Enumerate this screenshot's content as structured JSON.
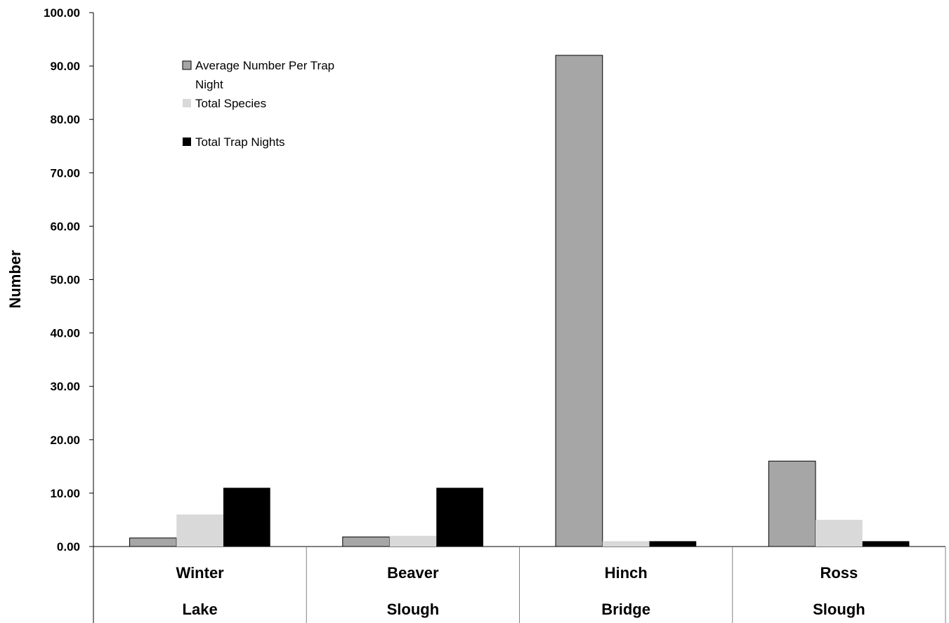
{
  "chart_data": {
    "type": "bar",
    "title": "",
    "xlabel": "",
    "ylabel": "Number",
    "ylim": [
      0,
      100
    ],
    "yticks": [
      "0.00",
      "10.00",
      "20.00",
      "30.00",
      "40.00",
      "50.00",
      "60.00",
      "70.00",
      "80.00",
      "90.00",
      "100.00"
    ],
    "categories": [
      {
        "line1": "Winter",
        "line2": "Lake"
      },
      {
        "line1": "Beaver",
        "line2": "Slough"
      },
      {
        "line1": "Hinch",
        "line2": "Bridge"
      },
      {
        "line1": "Ross",
        "line2": "Slough"
      }
    ],
    "series": [
      {
        "name": "Average Number Per Trap Night",
        "legend_lines": [
          "Average Number Per Trap",
          "Night"
        ],
        "color": "#a6a6a6",
        "outline": true,
        "values": [
          1.6,
          1.8,
          92,
          16
        ]
      },
      {
        "name": "Total Species",
        "legend_lines": [
          "Total Species"
        ],
        "color": "#d9d9d9",
        "outline": false,
        "values": [
          6,
          2,
          1,
          5
        ]
      },
      {
        "name": "Total Trap Nights",
        "legend_lines": [
          "Total Trap Nights"
        ],
        "color": "#000000",
        "outline": false,
        "values": [
          11,
          11,
          1,
          1
        ]
      }
    ],
    "legend_position": "top-left",
    "grid": false
  }
}
